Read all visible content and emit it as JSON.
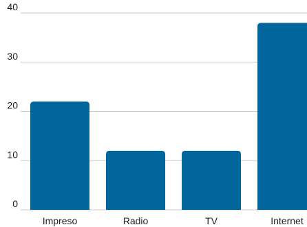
{
  "chart_data": {
    "type": "bar",
    "categories": [
      "Impreso",
      "Radio",
      "TV",
      "Internet"
    ],
    "values": [
      22,
      12,
      12,
      38
    ],
    "title": "",
    "xlabel": "",
    "ylabel": "",
    "ylim": [
      0,
      40
    ],
    "yticks": [
      0,
      10,
      20,
      30,
      40
    ],
    "grid": true,
    "bar_color": "#00669b",
    "grid_color": "#c8c8c8"
  }
}
